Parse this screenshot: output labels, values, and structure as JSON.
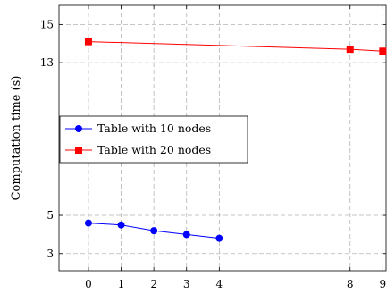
{
  "chart_data": {
    "type": "line",
    "title": "",
    "xlabel": "",
    "ylabel": "Computation time (s)",
    "xlim": [
      -0.9,
      9.1
    ],
    "ylim": [
      2.1,
      16
    ],
    "x_ticks": [
      0,
      1,
      2,
      3,
      4,
      8,
      9
    ],
    "y_ticks": [
      3,
      5,
      13,
      15
    ],
    "grid": true,
    "legend_position": "center-left",
    "series": [
      {
        "name": "Table with 10 nodes",
        "color": "#0000ff",
        "marker": "circle",
        "x": [
          0,
          1,
          2,
          3,
          4
        ],
        "y": [
          4.6,
          4.5,
          4.2,
          4.0,
          3.8
        ]
      },
      {
        "name": "Table with 20 nodes",
        "color": "#ff0000",
        "marker": "square",
        "x": [
          0,
          8,
          9
        ],
        "y": [
          14.1,
          13.7,
          13.6
        ]
      }
    ]
  }
}
